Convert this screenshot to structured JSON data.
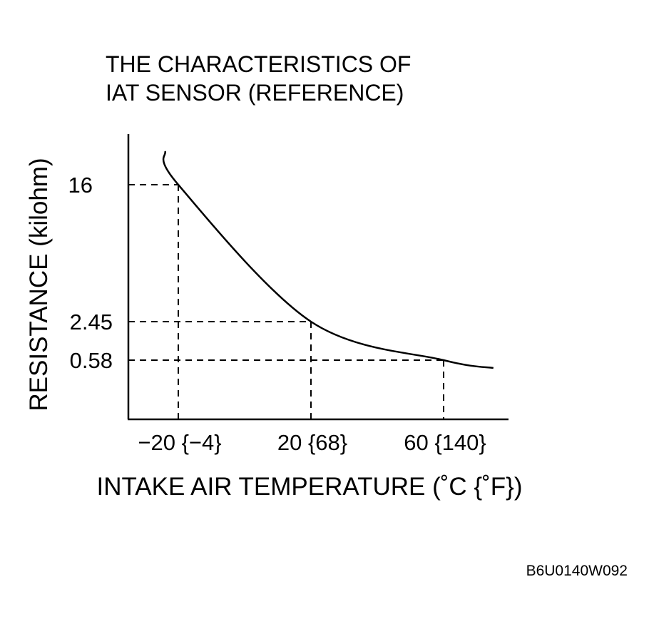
{
  "chart_data": {
    "type": "line",
    "title_lines": [
      "THE CHARACTERISTICS OF",
      "IAT SENSOR (REFERENCE)"
    ],
    "xlabel": "INTAKE AIR TEMPERATURE (˚C {˚F})",
    "ylabel": "RESISTANCE (kilohm)",
    "figure_code": "B6U0140W092",
    "x_ticks": [
      {
        "value": -20,
        "label": "−20 {−4}"
      },
      {
        "value": 20,
        "label": "20 {68}"
      },
      {
        "value": 60,
        "label": "60 {140}"
      }
    ],
    "y_ticks": [
      {
        "value": 16,
        "label": "16"
      },
      {
        "value": 2.45,
        "label": "2.45"
      },
      {
        "value": 0.58,
        "label": "0.58"
      }
    ],
    "reference_points": [
      {
        "x": -20,
        "y": 16
      },
      {
        "x": 20,
        "y": 2.45
      },
      {
        "x": 60,
        "y": 0.58
      }
    ],
    "series": [
      {
        "x": [
          -24,
          -20,
          20,
          60,
          75
        ],
        "y": [
          22,
          16,
          2.45,
          0.58,
          0.45
        ]
      }
    ],
    "xlim": [
      -35,
      80
    ],
    "y_scale": "nonlinear (schematic)",
    "grid": false,
    "legend": "none"
  }
}
